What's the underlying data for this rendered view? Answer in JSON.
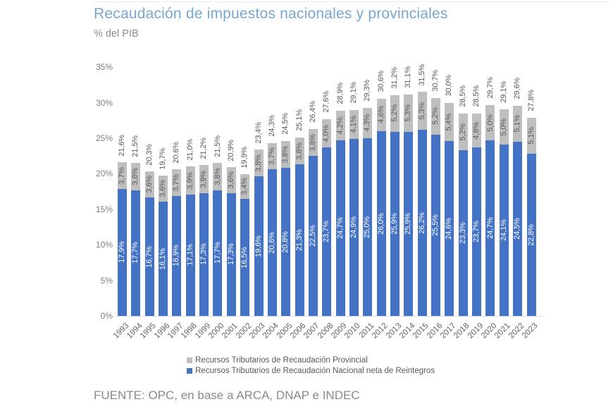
{
  "header": {
    "title": "Recaudación de impuestos nacionales y provinciales",
    "subtitle": "% del PIB"
  },
  "chart_data": {
    "type": "bar",
    "stacked": true,
    "title": "Recaudación de impuestos nacionales y provinciales",
    "subtitle": "% del PIB",
    "xlabel": "",
    "ylabel": "% del PIB",
    "ylim": [
      0,
      35
    ],
    "y_ticks": [
      "0%",
      "5%",
      "10%",
      "15%",
      "20%",
      "25%",
      "30%",
      "35%"
    ],
    "grid": false,
    "legend_position": "bottom",
    "categories": [
      "1993",
      "1994",
      "1995",
      "1996",
      "1997",
      "1998",
      "1999",
      "2000",
      "2001",
      "2002",
      "2003",
      "2004",
      "2005",
      "2006",
      "2007",
      "2008",
      "2009",
      "2010",
      "2011",
      "2012",
      "2013",
      "2014",
      "2015",
      "2016",
      "2017",
      "2018",
      "2019",
      "2020",
      "2021",
      "2022",
      "2023"
    ],
    "series": [
      {
        "name": "Recursos Tributarios de Recaudación Nacional neta de Reintegros",
        "color": "#4472c4",
        "label_color": "#ffffff",
        "values": [
          17.9,
          17.7,
          16.7,
          16.1,
          16.9,
          17.1,
          17.3,
          17.7,
          17.3,
          16.5,
          19.6,
          20.6,
          20.8,
          21.3,
          22.5,
          23.7,
          24.7,
          24.9,
          25.0,
          26.0,
          25.9,
          25.9,
          26.2,
          25.5,
          24.6,
          23.3,
          23.7,
          24.7,
          24.1,
          24.5,
          22.8
        ]
      },
      {
        "name": "Recursos Tributarios de Recaudación Provincial",
        "color": "#bfbfbf",
        "label_color": "#595959",
        "values": [
          3.7,
          3.8,
          3.6,
          3.6,
          3.7,
          3.9,
          3.9,
          3.8,
          3.6,
          3.4,
          3.8,
          3.7,
          3.8,
          3.8,
          3.8,
          4.0,
          4.2,
          4.1,
          4.3,
          4.6,
          5.2,
          5.3,
          5.3,
          5.2,
          5.4,
          5.2,
          4.8,
          5.0,
          5.0,
          5.1,
          5.1
        ]
      }
    ],
    "national_labels": [
      "17,9%",
      "17,7%",
      "16,7%",
      "16,1%",
      "16,9%",
      "17,1%",
      "17,3%",
      "17,7%",
      "17,3%",
      "16,5%",
      "19,6%",
      "20,6%",
      "20,8%",
      "21,3%",
      "22,5%",
      "23,7%",
      "24,7%",
      "24,9%",
      "25,0%",
      "26,0%",
      "25,9%",
      "25,9%",
      "26,2%",
      "25,5%",
      "24,6%",
      "23,3%",
      "23,7%",
      "24,7%",
      "24,1%",
      "24,5%",
      "22,8%"
    ],
    "provincial_labels": [
      "3,7%",
      "3,8%",
      "3,6%",
      "3,6%",
      "3,7%",
      "3,9%",
      "3,9%",
      "3,8%",
      "3,6%",
      "3,4%",
      "3,8%",
      "3,7%",
      "3,8%",
      "3,8%",
      "3,8%",
      "4,0%",
      "4,2%",
      "4,1%",
      "4,3%",
      "4,6%",
      "5,2%",
      "5,3%",
      "5,3%",
      "5,2%",
      "5,4%",
      "5,2%",
      "4,8%",
      "5,0%",
      "5,0%",
      "5,1%",
      "5,1%"
    ],
    "total_labels": [
      "21,6%",
      "21,5%",
      "20,3%",
      "19,7%",
      "20,6%",
      "21,0%",
      "21,2%",
      "21,5%",
      "20,9%",
      "19,9%",
      "23,4%",
      "24,3%",
      "24,5%",
      "25,1%",
      "26,4%",
      "27,6%",
      "28,9%",
      "29,1%",
      "29,3%",
      "30,6%",
      "31,2%",
      "31,1%",
      "31,5%",
      "30,7%",
      "30,0%",
      "28,5%",
      "28,5%",
      "29,7%",
      "29,1%",
      "29,6%",
      "27,8%"
    ]
  },
  "legend": {
    "provincial_label": "Recursos Tributarios de Recaudación Provincial",
    "national_label": "Recursos Tributarios de Recaudación Nacional neta de Reintegros"
  },
  "source": "FUENTE: OPC, en base a ARCA, DNAP e INDEC",
  "colors": {
    "title": "#78a8d2",
    "national_bar": "#4472c4",
    "provincial_bar": "#bfbfbf",
    "axis_text": "#7f7f7f",
    "data_label": "#595959"
  }
}
